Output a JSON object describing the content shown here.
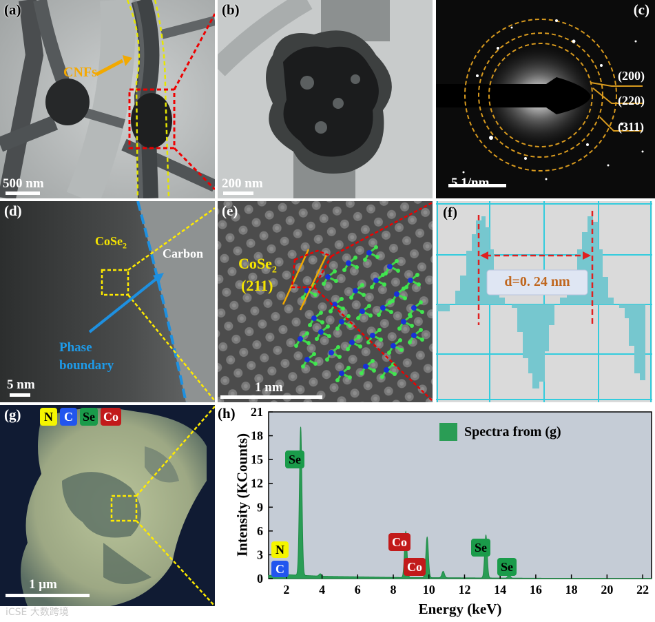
{
  "panels": {
    "a": {
      "label": "(a)",
      "annotation": "CNFs",
      "scale": "500 nm"
    },
    "b": {
      "label": "(b)",
      "scale": "200 nm"
    },
    "c": {
      "label": "(c)",
      "rings": [
        "(200)",
        "(220)",
        "(311)"
      ],
      "scale": "5 1/nm"
    },
    "d": {
      "label": "(d)",
      "cose2_main": "CoSe",
      "cose2_sub": "2",
      "carbon": "Carbon",
      "boundary_line1": "Phase",
      "boundary_line2": "boundary",
      "scale": "5 nm"
    },
    "e": {
      "label": "(e)",
      "cose2_main": "CoSe",
      "cose2_sub": "2",
      "plane": "(211)",
      "scale": "1 nm"
    },
    "f": {
      "label": "(f)",
      "d_spacing": "d=0. 24 nm"
    },
    "g": {
      "label": "(g)",
      "elements": [
        "N",
        "C",
        "Se",
        "Co"
      ],
      "scale": "1 μm"
    },
    "h": {
      "label": "(h)",
      "legend": "Spectra from (g)",
      "peak_labels": [
        "Se",
        "N",
        "C",
        "Co",
        "Co",
        "Se",
        "Se"
      ]
    }
  },
  "colors": {
    "N": "#f5f500",
    "C": "#2255ee",
    "Se": "#1a9b4a",
    "Co": "#c21a1a",
    "spectrum": "#2a9d55",
    "plot_bg": "#c5ccd6",
    "lattice_bg": "#dcdcdc",
    "profile_fill": "#76c7cf",
    "grid": "#33ccdd"
  },
  "watermark": "iCSE 大数跨境",
  "chart_data": {
    "type": "line",
    "title": "",
    "xlabel": "Energy (keV)",
    "ylabel": "Intensity (KCounts)",
    "xlim": [
      1,
      22.5
    ],
    "ylim": [
      0,
      21
    ],
    "xticks": [
      2,
      4,
      6,
      8,
      10,
      12,
      14,
      16,
      18,
      20,
      22
    ],
    "yticks": [
      0,
      3,
      6,
      9,
      12,
      15,
      18,
      21
    ],
    "legend_position": "top-right",
    "series": [
      {
        "name": "Spectra from (g)",
        "peaks": [
          {
            "x": 2.8,
            "y": 18.7,
            "label": "Se"
          },
          {
            "x": 3.9,
            "y": 0.3
          },
          {
            "x": 8.7,
            "y": 5.8,
            "label": "Co"
          },
          {
            "x": 9.9,
            "y": 5.1
          },
          {
            "x": 10.8,
            "y": 0.8
          },
          {
            "x": 13.2,
            "y": 5.4,
            "label": "Se"
          },
          {
            "x": 14.5,
            "y": 0.4
          }
        ],
        "background": [
          [
            1.0,
            0.4
          ],
          [
            2.0,
            0.5
          ],
          [
            4.0,
            0.3
          ],
          [
            8.0,
            0.15
          ],
          [
            12.0,
            0.1
          ],
          [
            16.0,
            0.05
          ],
          [
            22.5,
            0.03
          ]
        ]
      }
    ]
  }
}
